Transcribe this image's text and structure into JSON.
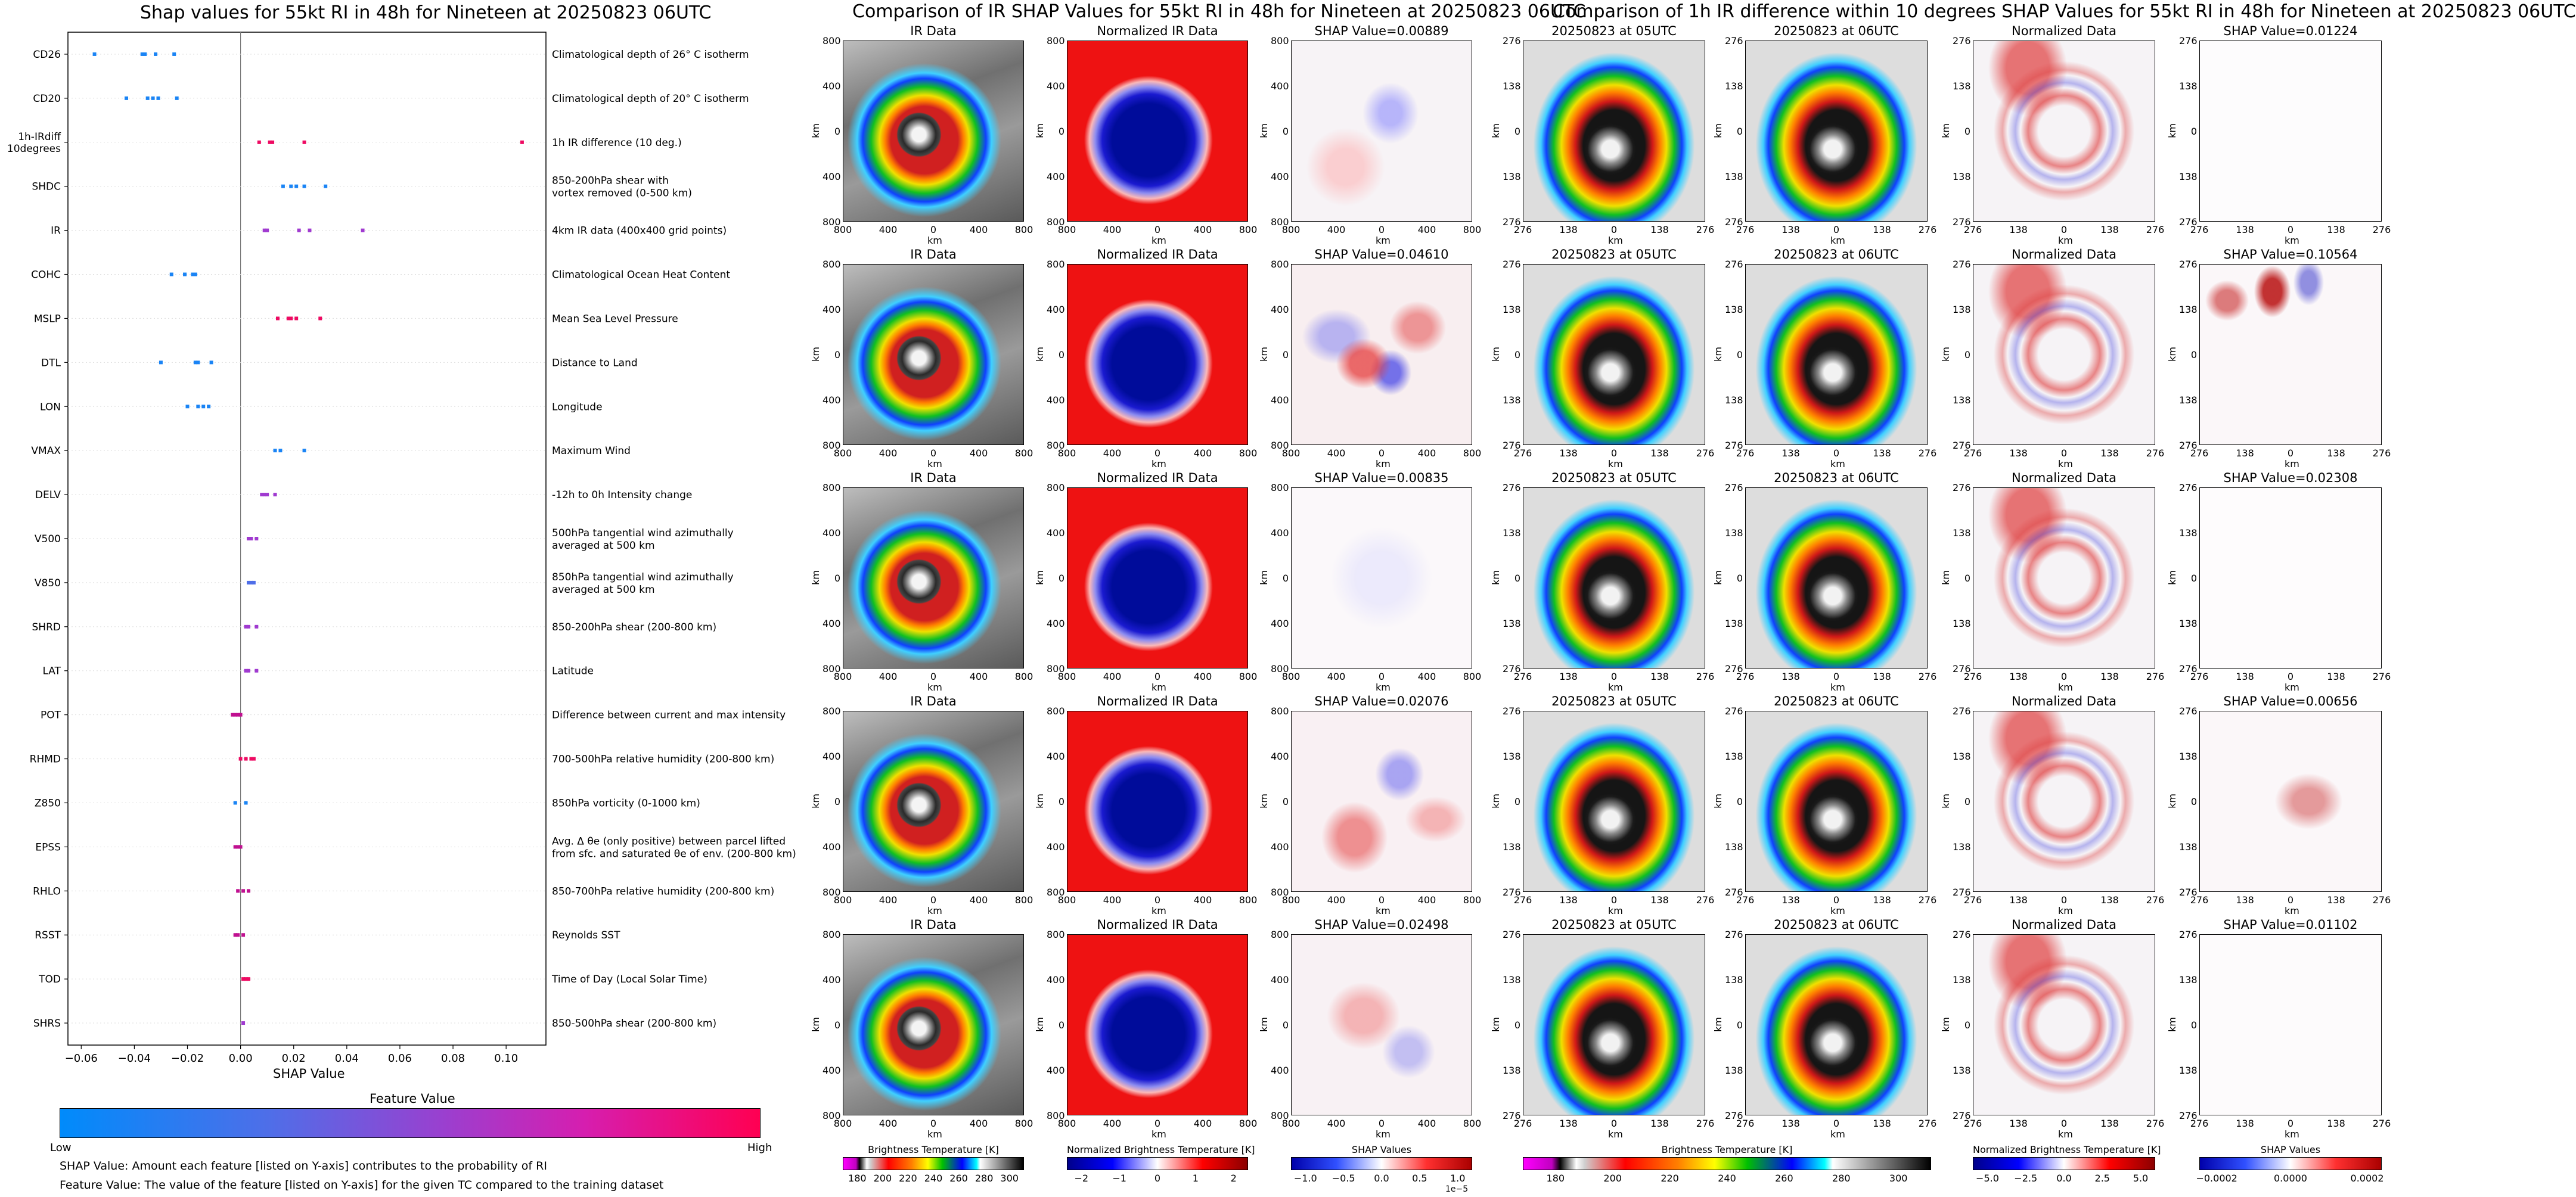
{
  "left": {
    "title": "Shap values for 55kt RI in 48h for Nineteen at 20250823 06UTC",
    "xlabel": "SHAP Value",
    "colorbar_title": "Feature Value",
    "low_label": "Low",
    "high_label": "High",
    "note1": "SHAP Value: Amount each feature [listed on Y-axis] contributes to the probability of RI",
    "note2": "Feature Value: The value of the feature [listed on Y-axis] for the given TC compared to the training dataset",
    "colors": {
      "low": "#008bfb",
      "high": "#ff0052"
    }
  },
  "chart_data": {
    "type": "scatter",
    "subtype": "shap-beeswarm",
    "xlim": [
      -0.065,
      0.115
    ],
    "xticks": [
      "−0.06",
      "−0.04",
      "−0.02",
      "0.00",
      "0.02",
      "0.04",
      "0.06",
      "0.08",
      "0.10"
    ],
    "features": [
      {
        "label": "CD26",
        "desc": [
          "Climatological depth of 26° C isotherm"
        ],
        "x": [
          -0.055,
          -0.037,
          -0.036,
          -0.032,
          -0.025
        ],
        "color": "#1a84f5"
      },
      {
        "label": "CD20",
        "desc": [
          "Climatological depth of 20° C isotherm"
        ],
        "x": [
          -0.043,
          -0.035,
          -0.033,
          -0.031,
          -0.024
        ],
        "color": "#1a84f5"
      },
      {
        "label": "1h-IRdiff\n10degrees",
        "desc": [
          "1h IR difference (10 deg.)"
        ],
        "x": [
          0.007,
          0.011,
          0.012,
          0.024,
          0.106
        ],
        "color": "#ee0a62"
      },
      {
        "label": "SHDC",
        "desc": [
          "850-200hPa shear with",
          "vortex removed (0-500 km)"
        ],
        "x": [
          0.016,
          0.019,
          0.021,
          0.024,
          0.032
        ],
        "color": "#1a84f5"
      },
      {
        "label": "IR",
        "desc": [
          "4km IR data (400x400 grid points)"
        ],
        "x": [
          0.009,
          0.01,
          0.022,
          0.026,
          0.046
        ],
        "color": "#a03ad0"
      },
      {
        "label": "COHC",
        "desc": [
          "Climatological Ocean Heat Content"
        ],
        "x": [
          -0.026,
          -0.021,
          -0.018,
          -0.017
        ],
        "color": "#1a84f5"
      },
      {
        "label": "MSLP",
        "desc": [
          "Mean Sea Level Pressure"
        ],
        "x": [
          0.014,
          0.018,
          0.019,
          0.021,
          0.03
        ],
        "color": "#ee0a62"
      },
      {
        "label": "DTL",
        "desc": [
          "Distance to Land"
        ],
        "x": [
          -0.03,
          -0.017,
          -0.016,
          -0.011
        ],
        "color": "#1a84f5"
      },
      {
        "label": "LON",
        "desc": [
          "Longitude"
        ],
        "x": [
          -0.02,
          -0.016,
          -0.014,
          -0.012
        ],
        "color": "#1a84f5"
      },
      {
        "label": "VMAX",
        "desc": [
          "Maximum Wind"
        ],
        "x": [
          0.013,
          0.015,
          0.024
        ],
        "color": "#1a84f5"
      },
      {
        "label": "DELV",
        "desc": [
          "-12h to 0h Intensity change"
        ],
        "x": [
          0.008,
          0.009,
          0.01,
          0.013
        ],
        "color": "#a03ad0"
      },
      {
        "label": "V500",
        "desc": [
          "500hPa tangential wind azimuthally",
          "averaged at 500 km"
        ],
        "x": [
          0.003,
          0.004,
          0.006
        ],
        "color": "#a03ad0"
      },
      {
        "label": "V850",
        "desc": [
          "850hPa tangential wind azimuthally",
          "averaged at 500 km"
        ],
        "x": [
          0.003,
          0.004,
          0.005
        ],
        "color": "#4f6ee8"
      },
      {
        "label": "SHRD",
        "desc": [
          "850-200hPa shear (200-800 km)"
        ],
        "x": [
          0.002,
          0.003,
          0.006
        ],
        "color": "#a03ad0"
      },
      {
        "label": "LAT",
        "desc": [
          "Latitude"
        ],
        "x": [
          0.002,
          0.003,
          0.006
        ],
        "color": "#a03ad0"
      },
      {
        "label": "POT",
        "desc": [
          "Difference between current and max intensity"
        ],
        "x": [
          -0.003,
          -0.002,
          -0.001,
          0.0
        ],
        "color": "#c01090"
      },
      {
        "label": "RHMD",
        "desc": [
          "700-500hPa relative humidity (200-800 km)"
        ],
        "x": [
          0.0,
          0.002,
          0.004,
          0.005
        ],
        "color": "#ee0a62"
      },
      {
        "label": "Z850",
        "desc": [
          "850hPa vorticity (0-1000 km)"
        ],
        "x": [
          -0.002,
          0.002
        ],
        "color": "#1a84f5"
      },
      {
        "label": "EPSS",
        "desc": [
          "Avg. Δ θe (only positive) between parcel lifted",
          "from sfc. and saturated θe of env. (200-800 km)"
        ],
        "x": [
          -0.002,
          -0.001,
          0.0
        ],
        "color": "#c01090"
      },
      {
        "label": "RHLO",
        "desc": [
          "850-700hPa relative humidity (200-800 km)"
        ],
        "x": [
          -0.001,
          0.001,
          0.003
        ],
        "color": "#c01090"
      },
      {
        "label": "RSST",
        "desc": [
          "Reynolds SST"
        ],
        "x": [
          -0.002,
          -0.001,
          0.001
        ],
        "color": "#c01090"
      },
      {
        "label": "TOD",
        "desc": [
          "Time of Day (Local Solar Time)"
        ],
        "x": [
          0.001,
          0.002,
          0.003
        ],
        "color": "#ee0a62"
      },
      {
        "label": "SHRS",
        "desc": [
          "850-500hPa shear (200-800 km)"
        ],
        "x": [
          0.001
        ],
        "color": "#a03ad0"
      }
    ]
  },
  "mid": {
    "title": "Comparison of IR SHAP Values for 55kt RI in 48h for Nineteen at 20250823 06UTC",
    "col_titles": [
      "IR Data",
      "Normalized IR Data"
    ],
    "shap_titles": [
      "SHAP Value=0.00889",
      "SHAP Value=0.04610",
      "SHAP Value=0.00835",
      "SHAP Value=0.02076",
      "SHAP Value=0.02498"
    ],
    "yticks": [
      "800",
      "400",
      "0",
      "400",
      "800"
    ],
    "xticks": [
      "800",
      "400",
      "0",
      "400",
      "800"
    ],
    "axis_unit": "km",
    "cbar_labels": [
      "Brightness Temperature [K]",
      "Normalized Brightness Temperature [K]",
      "SHAP Values"
    ],
    "cbar_bt_ticks": [
      "180",
      "200",
      "220",
      "240",
      "260",
      "280",
      "300"
    ],
    "cbar_norm_ticks": [
      "−2",
      "−1",
      "0",
      "1",
      "2"
    ],
    "cbar_shap_ticks": [
      "−1.0",
      "−0.5",
      "0.0",
      "0.5",
      "1.0"
    ],
    "cbar_shap_exp": "1e−5"
  },
  "right": {
    "title": "Comparison of 1h IR difference within 10 degrees SHAP Values for 55kt RI in 48h for Nineteen at 20250823 06UTC",
    "col_titles": [
      "20250823 at 05UTC",
      "20250823 at 06UTC",
      "Normalized Data"
    ],
    "shap_titles": [
      "SHAP Value=0.01224",
      "SHAP Value=0.10564",
      "SHAP Value=0.02308",
      "SHAP Value=0.00656",
      "SHAP Value=0.01102"
    ],
    "yticks": [
      "276",
      "138",
      "0",
      "138",
      "276"
    ],
    "xticks": [
      "276",
      "138",
      "0",
      "138",
      "276"
    ],
    "axis_unit": "km",
    "cbar_labels": [
      "Brightness Temperature [K]",
      "Normalized Brightness Temperature [K]",
      "SHAP Values"
    ],
    "cbar_bt_ticks": [
      "180",
      "200",
      "220",
      "240",
      "260",
      "280",
      "300"
    ],
    "cbar_norm_ticks": [
      "−5.0",
      "−2.5",
      "0.0",
      "2.5",
      "5.0"
    ],
    "cbar_shap_ticks": [
      "−0.0002",
      "0.0000",
      "0.0002"
    ]
  }
}
